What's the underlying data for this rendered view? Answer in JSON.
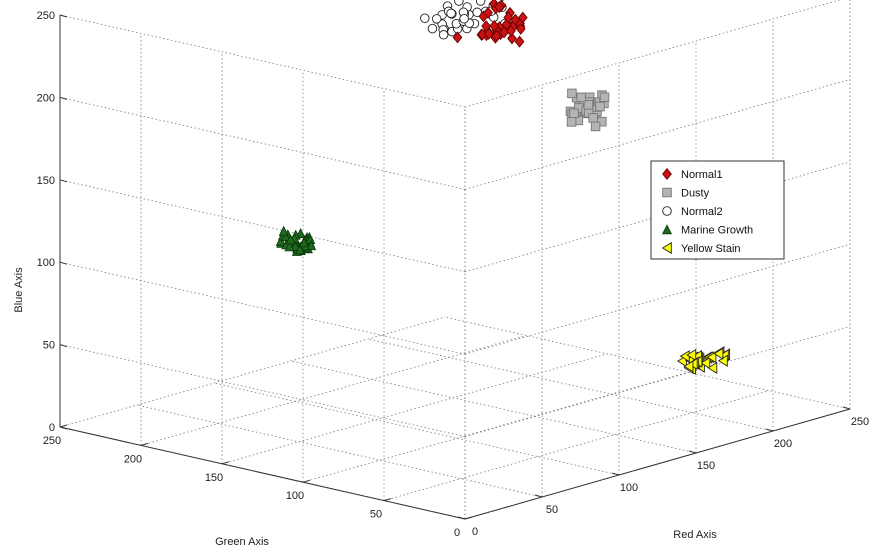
{
  "chart_data": {
    "type": "scatter",
    "dimensions": 3,
    "title": "",
    "xlabel": "Red Axis",
    "ylabel": "Green Axis",
    "zlabel": "Blue Axis",
    "xlim": [
      0,
      250
    ],
    "ylim": [
      0,
      250
    ],
    "zlim": [
      0,
      250
    ],
    "x_ticks": [
      "0",
      "50",
      "100",
      "150",
      "200",
      "250"
    ],
    "y_ticks": [
      "0",
      "50",
      "100",
      "150",
      "200",
      "250"
    ],
    "z_ticks": [
      "0",
      "50",
      "100",
      "150",
      "200",
      "250"
    ],
    "grid": true,
    "legend_position": "right",
    "series": [
      {
        "name": "Normal1",
        "marker": "diamond",
        "color": "#cc1111",
        "edge": "#660000",
        "center": [
          180,
          150,
          218
        ],
        "spread": [
          10,
          9,
          8
        ],
        "count": 40
      },
      {
        "name": "Dusty",
        "marker": "square",
        "color": "#b4b4b4",
        "edge": "#777777",
        "center": [
          178,
          95,
          180
        ],
        "spread": [
          10,
          8,
          6
        ],
        "count": 34
      },
      {
        "name": "Normal2",
        "marker": "circle",
        "color": "#ffffff",
        "edge": "#222222",
        "center": [
          170,
          160,
          224
        ],
        "spread": [
          12,
          10,
          8
        ],
        "count": 38
      },
      {
        "name": "Marine Growth",
        "marker": "triangle-up",
        "color": "#1e6b1e",
        "edge": "#0a3a0a",
        "center": [
          92,
          192,
          101
        ],
        "spread": [
          6,
          6,
          4
        ],
        "count": 34
      },
      {
        "name": "Yellow Stain",
        "marker": "triangle-left",
        "color": "#ffff00",
        "edge": "#222222",
        "center": [
          170,
          15,
          48
        ],
        "spread": [
          10,
          5,
          3
        ],
        "count": 28
      }
    ]
  }
}
